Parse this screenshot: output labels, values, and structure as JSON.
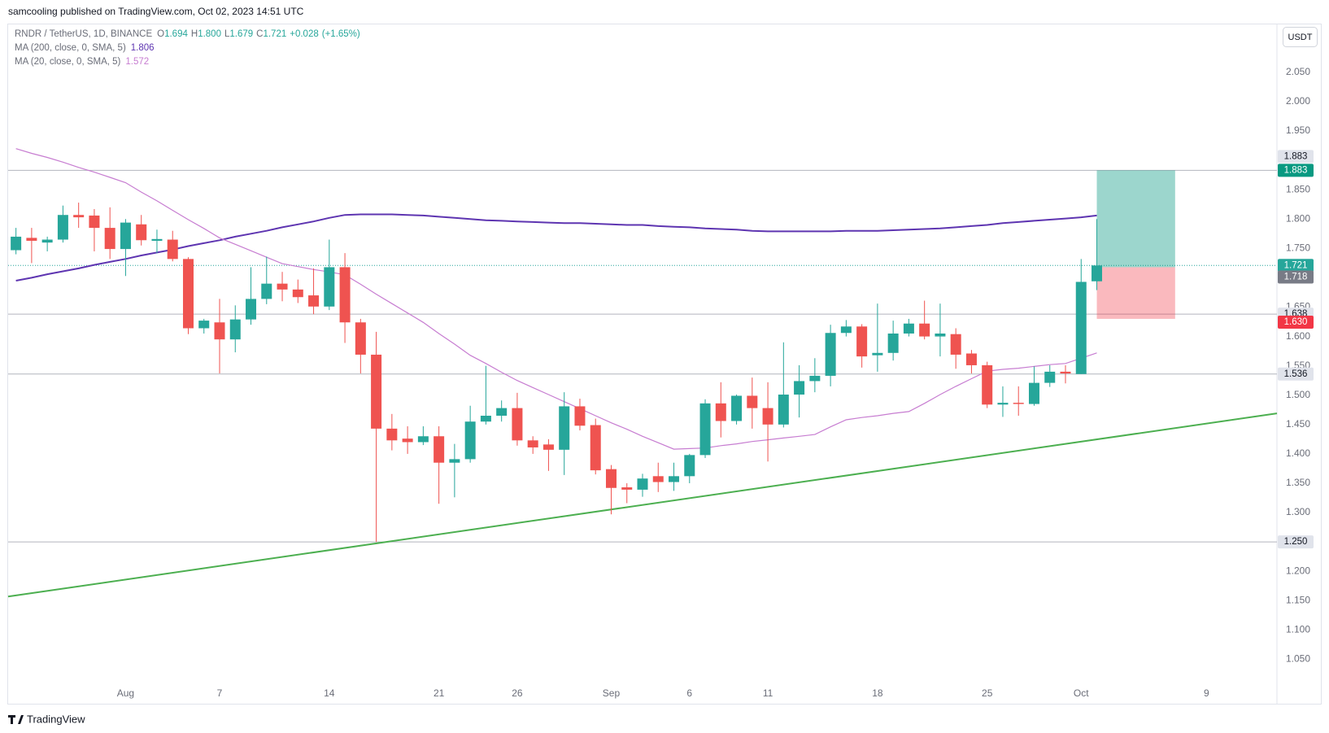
{
  "header": {
    "publisher": "samcooling published on TradingView.com, Oct 02, 2023 14:51 UTC"
  },
  "legend": {
    "symbol": "RNDR / TetherUS, 1D, BINANCE",
    "ohlc": [
      {
        "key": "O",
        "value": 1.694,
        "label": "1.694"
      },
      {
        "key": "H",
        "value": 1.8,
        "label": "1.800"
      },
      {
        "key": "L",
        "value": 1.679,
        "label": "1.679"
      },
      {
        "key": "C",
        "value": 1.721,
        "label": "1.721"
      }
    ],
    "change": {
      "value": 0.028,
      "label": "+0.028"
    },
    "change_pct": {
      "value": 1.65,
      "label": "(+1.65%)"
    }
  },
  "chart_data": {
    "type": "candlestick",
    "unit": "USDT",
    "up_color": "#26a69a",
    "down_color": "#ef5350",
    "grid": false,
    "categories": [
      null,
      null,
      null,
      null,
      null,
      null,
      null,
      "Aug",
      null,
      null,
      null,
      null,
      null,
      "7",
      null,
      null,
      null,
      null,
      null,
      null,
      "14",
      null,
      null,
      null,
      null,
      null,
      null,
      "21",
      null,
      null,
      null,
      null,
      "26",
      null,
      null,
      null,
      null,
      null,
      "Sep",
      null,
      null,
      null,
      null,
      "6",
      null,
      null,
      null,
      null,
      "11",
      null,
      null,
      null,
      null,
      null,
      null,
      "18",
      null,
      null,
      null,
      null,
      null,
      null,
      "25",
      null,
      null,
      null,
      null,
      null,
      "Oct",
      null,
      null,
      null,
      null,
      null,
      null,
      null,
      "9",
      null,
      null,
      null,
      null
    ],
    "open": [
      1.747,
      1.768,
      1.76,
      1.765,
      1.807,
      1.806,
      1.785,
      1.749,
      1.791,
      1.763,
      1.765,
      1.732,
      1.614,
      1.624,
      1.595,
      1.629,
      1.664,
      1.69,
      1.68,
      1.67,
      1.651,
      1.718,
      1.624,
      1.569,
      1.443,
      1.426,
      1.42,
      1.43,
      1.385,
      1.391,
      1.455,
      1.465,
      1.478,
      1.423,
      1.416,
      1.407,
      1.481,
      1.449,
      1.374,
      1.343,
      1.339,
      1.362,
      1.352,
      1.362,
      1.398,
      1.486,
      1.456,
      1.499,
      1.478,
      1.45,
      1.501,
      1.524,
      1.533,
      1.606,
      1.617,
      1.568,
      1.572,
      1.605,
      1.622,
      1.6,
      1.604,
      1.571,
      1.551,
      1.484,
      1.487,
      1.485,
      1.521,
      1.54,
      1.536,
      1.694,
      null,
      null,
      null,
      null,
      null,
      null,
      null,
      null,
      null,
      null,
      null
    ],
    "high": [
      1.785,
      1.785,
      1.77,
      1.823,
      1.828,
      1.817,
      1.82,
      1.8,
      1.807,
      1.782,
      1.78,
      1.735,
      1.63,
      1.664,
      1.653,
      1.718,
      1.736,
      1.71,
      1.697,
      1.716,
      1.765,
      1.742,
      1.63,
      1.608,
      1.468,
      1.447,
      1.447,
      1.447,
      1.417,
      1.482,
      1.55,
      1.491,
      1.504,
      1.43,
      1.425,
      1.505,
      1.494,
      1.46,
      1.381,
      1.35,
      1.366,
      1.385,
      1.385,
      1.4,
      1.493,
      1.522,
      1.501,
      1.53,
      1.522,
      1.59,
      1.551,
      1.563,
      1.62,
      1.628,
      1.621,
      1.656,
      1.627,
      1.63,
      1.661,
      1.656,
      1.614,
      1.577,
      1.557,
      1.515,
      1.515,
      1.549,
      1.551,
      1.551,
      1.732,
      1.8,
      null,
      null,
      null,
      null,
      null,
      null,
      null,
      null,
      null,
      null,
      null
    ],
    "low": [
      1.74,
      1.725,
      1.745,
      1.76,
      1.785,
      1.745,
      1.732,
      1.703,
      1.755,
      1.742,
      1.728,
      1.604,
      1.605,
      1.537,
      1.573,
      1.62,
      1.655,
      1.66,
      1.657,
      1.638,
      1.645,
      1.589,
      1.537,
      1.25,
      1.406,
      1.4,
      1.415,
      1.315,
      1.326,
      1.385,
      1.45,
      1.455,
      1.414,
      1.4,
      1.371,
      1.364,
      1.44,
      1.365,
      1.297,
      1.316,
      1.327,
      1.335,
      1.337,
      1.35,
      1.393,
      1.428,
      1.45,
      1.443,
      1.387,
      1.445,
      1.462,
      1.505,
      1.515,
      1.6,
      1.547,
      1.54,
      1.559,
      1.6,
      1.595,
      1.566,
      1.545,
      1.537,
      1.478,
      1.463,
      1.465,
      1.482,
      1.514,
      1.52,
      1.536,
      1.679,
      null,
      null,
      null,
      null,
      null,
      null,
      null,
      null,
      null,
      null,
      null
    ],
    "close": [
      1.77,
      1.763,
      1.765,
      1.807,
      1.803,
      1.785,
      1.749,
      1.794,
      1.764,
      1.766,
      1.732,
      1.614,
      1.627,
      1.595,
      1.629,
      1.664,
      1.69,
      1.68,
      1.667,
      1.651,
      1.718,
      1.624,
      1.569,
      1.443,
      1.423,
      1.42,
      1.43,
      1.385,
      1.391,
      1.455,
      1.465,
      1.478,
      1.423,
      1.411,
      1.407,
      1.481,
      1.448,
      1.372,
      1.342,
      1.339,
      1.358,
      1.352,
      1.362,
      1.398,
      1.486,
      1.456,
      1.499,
      1.478,
      1.45,
      1.501,
      1.524,
      1.533,
      1.606,
      1.617,
      1.566,
      1.572,
      1.605,
      1.622,
      1.6,
      1.605,
      1.569,
      1.551,
      1.484,
      1.487,
      1.485,
      1.521,
      1.54,
      1.537,
      1.693,
      1.721,
      null,
      null,
      null,
      null,
      null,
      null,
      null,
      null,
      null,
      null,
      null
    ],
    "series": [
      {
        "name": "MA (200, close, 0, SMA, 5)",
        "color": "#5e35b1",
        "values": [
          1.695,
          1.7,
          1.706,
          1.711,
          1.716,
          1.722,
          1.727,
          1.732,
          1.738,
          1.743,
          1.748,
          1.754,
          1.759,
          1.764,
          1.77,
          1.775,
          1.78,
          1.786,
          1.791,
          1.796,
          1.802,
          1.807,
          1.808,
          1.808,
          1.808,
          1.807,
          1.806,
          1.804,
          1.802,
          1.8,
          1.798,
          1.797,
          1.796,
          1.795,
          1.794,
          1.793,
          1.793,
          1.792,
          1.791,
          1.79,
          1.79,
          1.788,
          1.787,
          1.786,
          1.784,
          1.783,
          1.782,
          1.78,
          1.779,
          1.779,
          1.779,
          1.779,
          1.779,
          1.78,
          1.78,
          1.78,
          1.781,
          1.782,
          1.783,
          1.784,
          1.786,
          1.788,
          1.79,
          1.793,
          1.795,
          1.797,
          1.799,
          1.801,
          1.803,
          1.806,
          null,
          null,
          null,
          null,
          null,
          null,
          null,
          null,
          null,
          null,
          null
        ]
      },
      {
        "name": "MA (20, close, 0, SMA, 5)",
        "color": "#c77dd1",
        "values": [
          1.92,
          1.912,
          1.905,
          1.897,
          1.888,
          1.88,
          1.871,
          1.862,
          1.846,
          1.831,
          1.815,
          1.799,
          1.784,
          1.768,
          1.757,
          1.746,
          1.735,
          1.724,
          1.719,
          1.714,
          1.71,
          1.705,
          1.689,
          1.672,
          1.656,
          1.64,
          1.624,
          1.605,
          1.587,
          1.568,
          1.554,
          1.539,
          1.525,
          1.513,
          1.501,
          1.489,
          1.477,
          1.465,
          1.453,
          1.442,
          1.43,
          1.419,
          1.408,
          1.409,
          1.41,
          1.414,
          1.417,
          1.421,
          1.424,
          1.427,
          1.43,
          1.433,
          1.446,
          1.458,
          1.462,
          1.465,
          1.469,
          1.472,
          1.486,
          1.501,
          1.515,
          1.528,
          1.541,
          1.544,
          1.546,
          1.549,
          1.552,
          1.554,
          1.563,
          1.572,
          null,
          null,
          null,
          null,
          null,
          null,
          null,
          null,
          null,
          null,
          null
        ]
      }
    ],
    "ylim": [
      0.973,
      2.133
    ],
    "yticks": [
      {
        "value": 1.05,
        "label": "1.050"
      },
      {
        "value": 1.1,
        "label": "1.100"
      },
      {
        "value": 1.15,
        "label": "1.150"
      },
      {
        "value": 1.2,
        "label": "1.200"
      },
      {
        "value": 1.25,
        "label": "1.250"
      },
      {
        "value": 1.3,
        "label": "1.300"
      },
      {
        "value": 1.35,
        "label": "1.350"
      },
      {
        "value": 1.4,
        "label": "1.400"
      },
      {
        "value": 1.45,
        "label": "1.450"
      },
      {
        "value": 1.5,
        "label": "1.500"
      },
      {
        "value": 1.55,
        "label": "1.550"
      },
      {
        "value": 1.6,
        "label": "1.600"
      },
      {
        "value": 1.65,
        "label": "1.650"
      },
      {
        "value": 1.75,
        "label": "1.750"
      },
      {
        "value": 1.8,
        "label": "1.800"
      },
      {
        "value": 1.85,
        "label": "1.850"
      },
      {
        "value": 1.95,
        "label": "1.950"
      },
      {
        "value": 2.0,
        "label": "2.000"
      },
      {
        "value": 2.05,
        "label": "2.050"
      }
    ],
    "levels": [
      {
        "value": 1.883,
        "label": "1.883"
      },
      {
        "value": 1.638,
        "label": "1.638"
      },
      {
        "value": 1.536,
        "label": "1.536"
      },
      {
        "value": 1.25,
        "label": "1.250"
      }
    ],
    "last_price": {
      "value": 1.721,
      "label": "1.721",
      "color": "#26a69a"
    },
    "trendline": {
      "start": 1.157,
      "end": 1.469,
      "color": "#4caf50"
    },
    "position": {
      "target": {
        "value": 1.883,
        "label": "1.883",
        "color": "#089981"
      },
      "entry": {
        "value": 1.718,
        "label": "1.718",
        "color": "#787b86"
      },
      "stop": {
        "value": 1.63,
        "label": "1.630",
        "color": "#f23645"
      }
    }
  },
  "footer": {
    "brand": "TradingView"
  }
}
